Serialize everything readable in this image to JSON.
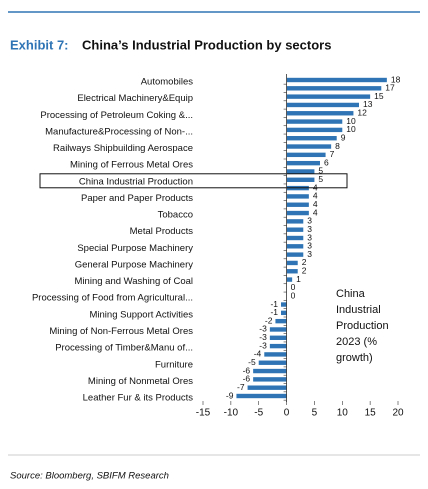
{
  "chart_data": {
    "type": "barh",
    "exhibit": "Exhibit 7:",
    "title": "China’s Industrial Production by sectors",
    "annotation": "China Industrial Production 2023 (% growth)",
    "source": "Source: Bloomberg, SBIFM Research",
    "categories": [
      "Automobiles",
      null,
      "Electrical Machinery&Equip",
      null,
      "Processing of Petroleum Coking &...",
      null,
      "Manufacture&Processing of Non-...",
      null,
      "Railways Shipbuilding Aerospace",
      null,
      "Mining of Ferrous Metal Ores",
      null,
      "China Industrial Production",
      null,
      "Paper and Paper Products",
      null,
      "Tobacco",
      null,
      "Metal Products",
      null,
      "Special Purpose Machinery",
      null,
      "General Purpose Machinery",
      null,
      "Mining and Washing of Coal",
      null,
      "Processing of Food from Agricultural...",
      null,
      "Mining Support Activities",
      null,
      "Mining of Non-Ferrous Metal Ores",
      null,
      "Processing of Timber&Manu of...",
      null,
      "Furniture",
      null,
      "Mining of Nonmetal Ores",
      null,
      "Leather Fur & its Products"
    ],
    "values": [
      18,
      17,
      15,
      13,
      12,
      10,
      10,
      9,
      8,
      7,
      6,
      5,
      5,
      4,
      4,
      4,
      4,
      3,
      3,
      3,
      3,
      3,
      2,
      2,
      1,
      0,
      0,
      -1,
      -1,
      -2,
      -3,
      -3,
      -3,
      -4,
      -5,
      -6,
      -6,
      -7,
      -9
    ],
    "color": "#2f75b5",
    "highlight_index": 12,
    "xlim": [
      -15,
      20
    ],
    "xticks": [
      -15,
      -10,
      -5,
      0,
      5,
      10,
      15,
      20
    ]
  }
}
